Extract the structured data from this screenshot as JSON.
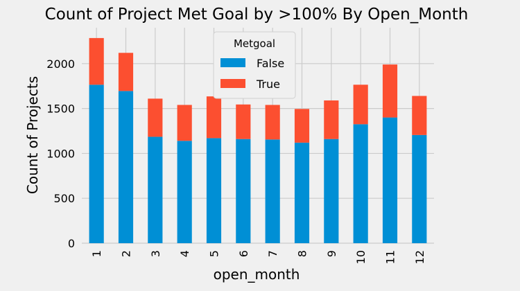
{
  "chart_data": {
    "type": "bar",
    "stacked": true,
    "title": "Count of Project Met Goal by >100% By Open_Month",
    "xlabel": "open_month",
    "ylabel": "Count of Projects",
    "categories": [
      "1",
      "2",
      "3",
      "4",
      "5",
      "6",
      "7",
      "8",
      "9",
      "10",
      "11",
      "12"
    ],
    "series": [
      {
        "name": "False",
        "color": "#008fd5",
        "values": [
          1765,
          1695,
          1185,
          1140,
          1170,
          1160,
          1155,
          1120,
          1160,
          1325,
          1400,
          1205
        ]
      },
      {
        "name": "True",
        "color": "#fc4f30",
        "values": [
          520,
          425,
          425,
          400,
          465,
          385,
          385,
          375,
          430,
          440,
          590,
          435
        ]
      }
    ],
    "ylim": [
      0,
      2400
    ],
    "yticks": [
      0,
      500,
      1000,
      1500,
      2000
    ],
    "grid": true,
    "legend": {
      "title": "Metgoal",
      "placement": "top-center"
    }
  }
}
